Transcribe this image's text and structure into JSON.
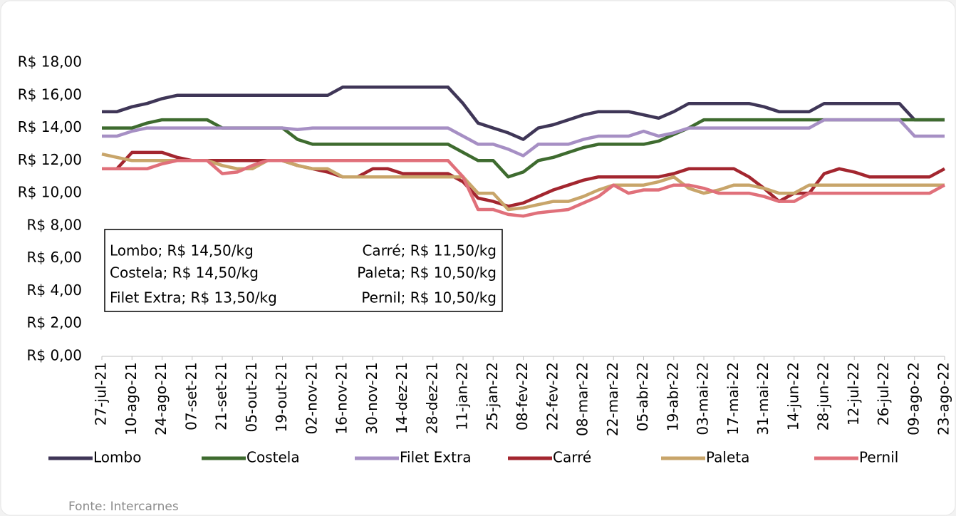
{
  "chart_data": {
    "type": "line",
    "categories": [
      "27-jul-21",
      null,
      "10-ago-21",
      null,
      "24-ago-21",
      null,
      "07-set-21",
      null,
      "21-set-21",
      null,
      "05-out-21",
      null,
      "19-out-21",
      null,
      "02-nov-21",
      null,
      "16-nov-21",
      null,
      "30-nov-21",
      null,
      "14-dez-21",
      null,
      "28-dez-21",
      null,
      "11-jan-22",
      null,
      "25-jan-22",
      null,
      "08-fev-22",
      null,
      "22-fev-22",
      null,
      "08-mar-22",
      null,
      "22-mar-22",
      null,
      "05-abr-22",
      null,
      "19-abr-22",
      null,
      "03-mai-22",
      null,
      "17-mai-22",
      null,
      "31-mai-22",
      null,
      "14-jun-22",
      null,
      "28-jun-22",
      null,
      "12-jul-22",
      null,
      "26-jul-22",
      null,
      "09-ago-22",
      null,
      "23-ago-22"
    ],
    "series": [
      {
        "name": "Lombo",
        "color": "#3f3657",
        "values": [
          15,
          15,
          15.3,
          15.5,
          15.8,
          16,
          16,
          16,
          16,
          16,
          16,
          16,
          16,
          16,
          16,
          16,
          16.5,
          16.5,
          16.5,
          16.5,
          16.5,
          16.5,
          16.5,
          16.5,
          15.5,
          14.3,
          14,
          13.7,
          13.3,
          14,
          14.2,
          14.5,
          14.8,
          15,
          15,
          15,
          14.8,
          14.6,
          15,
          15.5,
          15.5,
          15.5,
          15.5,
          15.5,
          15.3,
          15,
          15,
          15,
          15.5,
          15.5,
          15.5,
          15.5,
          15.5,
          15.5,
          14.5,
          14.5,
          14.5
        ]
      },
      {
        "name": "Costela",
        "color": "#3e6b2f",
        "values": [
          14,
          14,
          14,
          14.3,
          14.5,
          14.5,
          14.5,
          14.5,
          14,
          14,
          14,
          14,
          14,
          13.3,
          13,
          13,
          13,
          13,
          13,
          13,
          13,
          13,
          13,
          13,
          12.5,
          12,
          12,
          11,
          11.3,
          12,
          12.2,
          12.5,
          12.8,
          13,
          13,
          13,
          13,
          13.2,
          13.6,
          14,
          14.5,
          14.5,
          14.5,
          14.5,
          14.5,
          14.5,
          14.5,
          14.5,
          14.5,
          14.5,
          14.5,
          14.5,
          14.5,
          14.5,
          14.5,
          14.5,
          14.5
        ]
      },
      {
        "name": "Filet Extra",
        "color": "#a68fc4",
        "values": [
          13.5,
          13.5,
          13.8,
          14,
          14,
          14,
          14,
          14,
          14,
          14,
          14,
          14,
          14,
          13.9,
          14,
          14,
          14,
          14,
          14,
          14,
          14,
          14,
          14,
          14,
          13.5,
          13,
          13,
          12.7,
          12.3,
          13,
          13,
          13,
          13.3,
          13.5,
          13.5,
          13.5,
          13.8,
          13.5,
          13.7,
          14,
          14,
          14,
          14,
          14,
          14,
          14,
          14,
          14,
          14.5,
          14.5,
          14.5,
          14.5,
          14.5,
          14.5,
          13.5,
          13.5,
          13.5
        ]
      },
      {
        "name": "Carré",
        "color": "#a3262f",
        "values": [
          11.5,
          11.5,
          12.5,
          12.5,
          12.5,
          12.2,
          12,
          12,
          12,
          12,
          12,
          12,
          12,
          11.7,
          11.5,
          11.3,
          11,
          11,
          11.5,
          11.5,
          11.2,
          11.2,
          11.2,
          11.2,
          10.7,
          9.7,
          9.5,
          9.2,
          9.4,
          9.8,
          10.2,
          10.5,
          10.8,
          11,
          11,
          11,
          11,
          11,
          11.2,
          11.5,
          11.5,
          11.5,
          11.5,
          11,
          10.3,
          9.5,
          10,
          10,
          11.2,
          11.5,
          11.3,
          11,
          11,
          11,
          11,
          11,
          11.5
        ]
      },
      {
        "name": "Paleta",
        "color": "#c8a56a",
        "values": [
          12.4,
          12.2,
          12,
          12,
          12,
          12,
          12,
          12,
          11.7,
          11.5,
          11.5,
          12,
          12,
          11.7,
          11.5,
          11.5,
          11,
          11,
          11,
          11,
          11,
          11,
          11,
          11,
          11,
          10,
          10,
          9,
          9.1,
          9.3,
          9.5,
          9.5,
          9.8,
          10.2,
          10.5,
          10.5,
          10.5,
          10.7,
          11,
          10.3,
          10,
          10.2,
          10.5,
          10.5,
          10.3,
          10,
          10,
          10.5,
          10.5,
          10.5,
          10.5,
          10.5,
          10.5,
          10.5,
          10.5,
          10.5,
          10.5
        ]
      },
      {
        "name": "Pernil",
        "color": "#e0707a",
        "values": [
          11.5,
          11.5,
          11.5,
          11.5,
          11.8,
          12,
          12,
          12,
          11.2,
          11.3,
          11.7,
          12,
          12,
          12,
          12,
          12,
          12,
          12,
          12,
          12,
          12,
          12,
          12,
          12,
          11,
          9,
          9,
          8.7,
          8.6,
          8.8,
          8.9,
          9,
          9.4,
          9.8,
          10.5,
          10,
          10.2,
          10.2,
          10.5,
          10.5,
          10.3,
          10,
          10,
          10,
          9.8,
          9.5,
          9.5,
          10,
          10,
          10,
          10,
          10,
          10,
          10,
          10,
          10,
          10.5
        ]
      }
    ],
    "ylim": [
      0,
      18
    ],
    "yticks": [
      {
        "value": 0,
        "label": "R$ 0,00"
      },
      {
        "value": 2,
        "label": "R$ 2,00"
      },
      {
        "value": 4,
        "label": "R$ 4,00"
      },
      {
        "value": 6,
        "label": "R$ 6,00"
      },
      {
        "value": 8,
        "label": "R$ 8,00"
      },
      {
        "value": 10,
        "label": "R$ 10,00"
      },
      {
        "value": 12,
        "label": "R$ 12,00"
      },
      {
        "value": 14,
        "label": "R$ 14,00"
      },
      {
        "value": 16,
        "label": "R$ 16,00"
      },
      {
        "value": 18,
        "label": "R$ 18,00"
      }
    ],
    "annotations": [
      "Lombo; R$ 14,50/kg",
      "Costela; R$ 14,50/kg",
      "Filet Extra; R$ 13,50/kg",
      "Carré; R$ 11,50/kg",
      "Paleta; R$ 10,50/kg",
      "Pernil; R$ 10,50/kg"
    ],
    "source": "Fonte: Intercarnes",
    "legend": "bottom"
  }
}
